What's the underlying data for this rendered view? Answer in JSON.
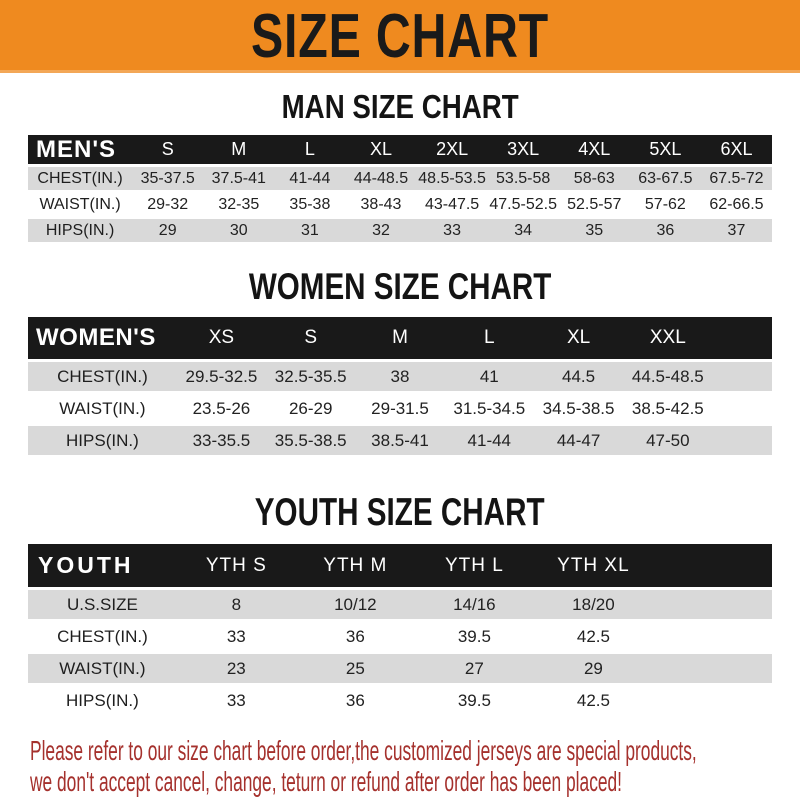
{
  "banner": {
    "title": "SIZE CHART",
    "bg_color": "#ef8a1f",
    "text_color": "#1a1a1a"
  },
  "sections": [
    {
      "heading": "MAN SIZE CHART",
      "header_label": "MEN'S",
      "columns": [
        "S",
        "M",
        "L",
        "XL",
        "2XL",
        "3XL",
        "4XL",
        "5XL",
        "6XL"
      ],
      "rows": [
        {
          "label": "CHEST(IN.)",
          "values": [
            "35-37.5",
            "37.5-41",
            "41-44",
            "44-48.5",
            "48.5-53.5",
            "53.5-58",
            "58-63",
            "63-67.5",
            "67.5-72"
          ]
        },
        {
          "label": "WAIST(IN.)",
          "values": [
            "29-32",
            "32-35",
            "35-38",
            "38-43",
            "43-47.5",
            "47.5-52.5",
            "52.5-57",
            "57-62",
            "62-66.5"
          ]
        },
        {
          "label": "HIPS(IN.)",
          "values": [
            "29",
            "30",
            "31",
            "32",
            "33",
            "34",
            "35",
            "36",
            "37"
          ]
        }
      ]
    },
    {
      "heading": "WOMEN SIZE CHART",
      "header_label": "WOMEN'S",
      "columns": [
        "XS",
        "S",
        "M",
        "L",
        "XL",
        "XXL"
      ],
      "rows": [
        {
          "label": "CHEST(IN.)",
          "values": [
            "29.5-32.5",
            "32.5-35.5",
            "38",
            "41",
            "44.5",
            "44.5-48.5"
          ]
        },
        {
          "label": "WAIST(IN.)",
          "values": [
            "23.5-26",
            "26-29",
            "29-31.5",
            "31.5-34.5",
            "34.5-38.5",
            "38.5-42.5"
          ]
        },
        {
          "label": "HIPS(IN.)",
          "values": [
            "33-35.5",
            "35.5-38.5",
            "38.5-41",
            "41-44",
            "44-47",
            "47-50"
          ]
        }
      ]
    },
    {
      "heading": "YOUTH SIZE CHART",
      "header_label": "YOUTH",
      "columns": [
        "YTH S",
        "YTH M",
        "YTH L",
        "YTH XL"
      ],
      "rows": [
        {
          "label": "U.S.SIZE",
          "values": [
            "8",
            "10/12",
            "14/16",
            "18/20"
          ]
        },
        {
          "label": "CHEST(IN.)",
          "values": [
            "33",
            "36",
            "39.5",
            "42.5"
          ]
        },
        {
          "label": "WAIST(IN.)",
          "values": [
            "23",
            "25",
            "27",
            "29"
          ]
        },
        {
          "label": "HIPS(IN.)",
          "values": [
            "33",
            "36",
            "39.5",
            "42.5"
          ]
        }
      ]
    }
  ],
  "footer": {
    "lines": [
      "Please refer to our size chart before order,the customized jerseys are special products,",
      "we don't accept cancel, change, teturn or refund after order has been placed!"
    ],
    "text_color": "#a5312d"
  },
  "colors": {
    "banner_bg": "#ef8a1f",
    "table_header_bar": "#191919",
    "row_alt_gray": "#d9d9d9",
    "row_base_white": "#ffffff"
  }
}
